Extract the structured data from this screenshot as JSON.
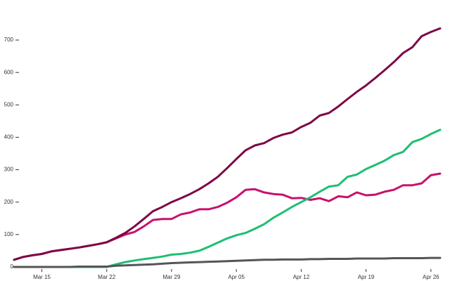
{
  "chart_data": {
    "type": "line",
    "categories": [
      null,
      null,
      null,
      "Mar 15",
      null,
      null,
      null,
      null,
      null,
      null,
      "Mar 22",
      null,
      null,
      null,
      null,
      null,
      null,
      "Mar 29",
      null,
      null,
      null,
      null,
      null,
      null,
      "Apr 05",
      null,
      null,
      null,
      null,
      null,
      null,
      "Apr 12",
      null,
      null,
      null,
      null,
      null,
      null,
      "Apr 19",
      null,
      null,
      null,
      null,
      null,
      null,
      "Apr 26",
      null
    ],
    "series": [
      {
        "color": "#c8106e",
        "values": [
          22,
          31,
          36,
          40,
          48,
          52,
          56,
          60,
          65,
          70,
          76,
          88,
          100,
          108,
          125,
          145,
          148,
          148,
          162,
          168,
          178,
          178,
          185,
          198,
          215,
          238,
          240,
          230,
          225,
          223,
          212,
          213,
          207,
          212,
          203,
          218,
          215,
          230,
          221,
          223,
          232,
          238,
          252,
          252,
          258,
          283,
          288
        ]
      },
      {
        "color": "#7d0745",
        "values": [
          22,
          31,
          36,
          40,
          48,
          52,
          56,
          60,
          65,
          70,
          76,
          90,
          105,
          125,
          148,
          172,
          185,
          200,
          212,
          225,
          240,
          258,
          278,
          305,
          333,
          360,
          375,
          382,
          398,
          408,
          415,
          432,
          445,
          467,
          475,
          495,
          518,
          540,
          560,
          583,
          607,
          632,
          660,
          678,
          712,
          725,
          736
        ]
      },
      {
        "color": "#1dbf73",
        "values": [
          0,
          0,
          0,
          0,
          0,
          0,
          0,
          0,
          0,
          0,
          0,
          8,
          15,
          20,
          24,
          28,
          32,
          38,
          40,
          44,
          50,
          62,
          75,
          88,
          98,
          105,
          118,
          132,
          152,
          168,
          185,
          200,
          215,
          232,
          248,
          252,
          278,
          285,
          302,
          315,
          328,
          345,
          355,
          385,
          395,
          410,
          423
        ]
      },
      {
        "color": "#555555",
        "values": [
          0,
          0,
          0,
          0,
          0,
          0,
          0,
          1,
          1,
          1,
          1,
          4,
          5,
          6,
          7,
          8,
          10,
          12,
          13,
          14,
          15,
          16,
          17,
          18,
          19,
          20,
          21,
          22,
          22,
          23,
          23,
          23,
          24,
          24,
          25,
          25,
          25,
          26,
          26,
          26,
          26,
          27,
          27,
          27,
          27,
          28,
          28
        ]
      }
    ],
    "ylim": [
      0,
      700
    ],
    "yticks": [
      0,
      100,
      200,
      300,
      400,
      500,
      600,
      700
    ]
  }
}
